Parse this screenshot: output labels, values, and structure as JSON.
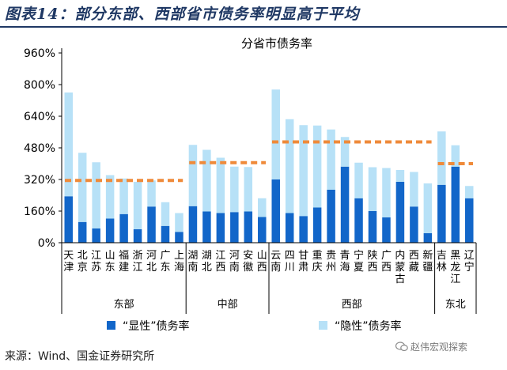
{
  "figure": {
    "title": "图表14：部分东部、西部省市债务率明显高于平均",
    "source": "来源：Wind、国金证券研究所",
    "watermark": "赵伟宏观探索"
  },
  "colors": {
    "explicit": "#1266c9",
    "hidden": "#b7e1f7",
    "average": "#ef8a3a",
    "title": "#1f3864",
    "axis": "#000000"
  },
  "chart_data": {
    "type": "bar",
    "stacked": true,
    "title": "分省市债务率",
    "ylim": [
      0,
      960
    ],
    "yticks": [
      0,
      160,
      320,
      480,
      640,
      800,
      960
    ],
    "ytick_labels": [
      "0%",
      "160%",
      "320%",
      "480%",
      "640%",
      "800%",
      "960%"
    ],
    "categories": [
      "天津",
      "北京",
      "江苏",
      "山东",
      "福建",
      "浙江",
      "河北",
      "广东",
      "上海",
      "湖南",
      "湖北",
      "江西",
      "河南",
      "安徽",
      "山西",
      "云南",
      "四川",
      "甘肃",
      "重庆",
      "贵州",
      "青海",
      "宁夏",
      "陕西",
      "广西",
      "内蒙古",
      "西藏",
      "新疆",
      "吉林",
      "黑龙江",
      "辽宁"
    ],
    "series": [
      {
        "name": "“显性”债务率",
        "values": [
          235,
          105,
          72,
          122,
          145,
          68,
          183,
          85,
          55,
          185,
          158,
          150,
          155,
          158,
          130,
          320,
          150,
          135,
          178,
          268,
          385,
          225,
          160,
          128,
          308,
          183,
          48,
          293,
          385,
          225
        ]
      },
      {
        "name": "“隐性”债务率",
        "values": [
          525,
          350,
          335,
          220,
          180,
          240,
          132,
          120,
          95,
          310,
          312,
          280,
          230,
          225,
          95,
          455,
          475,
          460,
          415,
          305,
          150,
          180,
          222,
          250,
          60,
          175,
          252,
          270,
          108,
          62
        ]
      }
    ],
    "groups": [
      {
        "name": "东部",
        "start": 0,
        "end": 8,
        "average": 315
      },
      {
        "name": "中部",
        "start": 9,
        "end": 14,
        "average": 405
      },
      {
        "name": "西部",
        "start": 15,
        "end": 26,
        "average": 510
      },
      {
        "name": "东北",
        "start": 27,
        "end": 29,
        "average": 400
      }
    ],
    "legend": [
      "“显性”债务率",
      "“隐性”债务率"
    ],
    "legend_position": "bottom"
  }
}
